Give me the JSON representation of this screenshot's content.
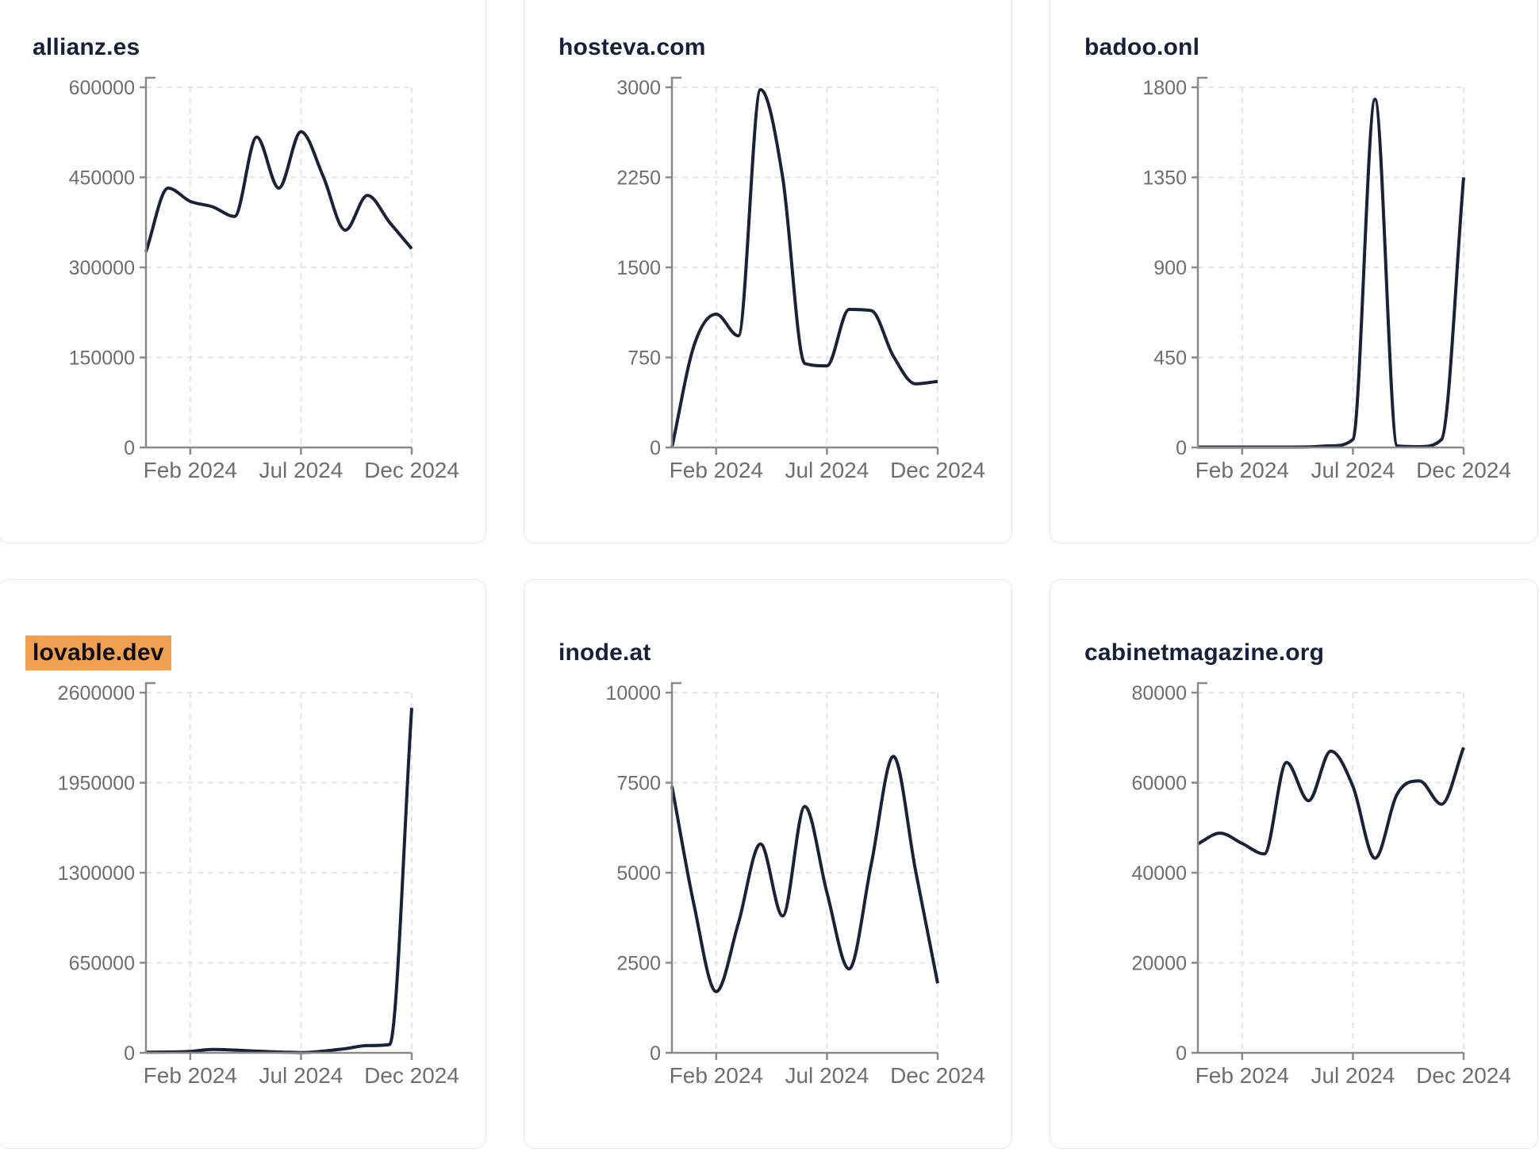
{
  "page": {
    "background": "#ffffff"
  },
  "colors": {
    "line": "#1a2139",
    "title": "#16203a",
    "tick_label": "#6e6e6e",
    "axis": "#8a8a8a",
    "grid": "#e4e5e9",
    "card_border": "#e5e8f1",
    "highlight": "#f0a04f",
    "highlight_text": "#0c0c12"
  },
  "chart_data": [
    {
      "type": "line",
      "title": "allianz.es",
      "highlighted": false,
      "x": [
        "2023-12",
        "2024-01",
        "2024-02",
        "2024-03",
        "2024-04",
        "2024-05",
        "2024-06",
        "2024-07",
        "2024-08",
        "2024-09",
        "2024-10",
        "2024-11",
        "2024-12"
      ],
      "values": [
        326000,
        432000,
        410000,
        401000,
        385000,
        517000,
        432000,
        526000,
        452000,
        362000,
        420000,
        375000,
        331000
      ],
      "ylim": [
        0,
        600000
      ],
      "y_ticks": [
        0,
        150000,
        300000,
        450000,
        600000
      ],
      "x_tick_labels": [
        "Feb 2024",
        "Jul 2024",
        "Dec 2024"
      ],
      "x_tick_index": [
        2,
        7,
        12
      ],
      "grid": "dashed",
      "legend": "none"
    },
    {
      "type": "line",
      "title": "hosteva.com",
      "highlighted": false,
      "x": [
        "2023-12",
        "2024-01",
        "2024-02",
        "2024-03",
        "2024-04",
        "2024-05",
        "2024-06",
        "2024-07",
        "2024-08",
        "2024-09",
        "2024-10",
        "2024-11",
        "2024-12"
      ],
      "values": [
        0,
        850,
        1110,
        930,
        2980,
        2250,
        700,
        680,
        1150,
        1140,
        760,
        530,
        550
      ],
      "ylim": [
        0,
        3000
      ],
      "y_ticks": [
        0,
        750,
        1500,
        2250,
        3000
      ],
      "x_tick_labels": [
        "Feb 2024",
        "Jul 2024",
        "Dec 2024"
      ],
      "x_tick_index": [
        2,
        7,
        12
      ],
      "grid": "dashed",
      "legend": "none"
    },
    {
      "type": "line",
      "title": "badoo.onl",
      "highlighted": false,
      "x": [
        "2023-12",
        "2024-01",
        "2024-02",
        "2024-03",
        "2024-04",
        "2024-05",
        "2024-06",
        "2024-07",
        "2024-08",
        "2024-09",
        "2024-10",
        "2024-11",
        "2024-12"
      ],
      "values": [
        2,
        2,
        2,
        2,
        2,
        3,
        8,
        40,
        1740,
        8,
        4,
        40,
        1350
      ],
      "ylim": [
        0,
        1800
      ],
      "y_ticks": [
        0,
        450,
        900,
        1350,
        1800
      ],
      "x_tick_labels": [
        "Feb 2024",
        "Jul 2024",
        "Dec 2024"
      ],
      "x_tick_index": [
        2,
        7,
        12
      ],
      "grid": "dashed",
      "legend": "none"
    },
    {
      "type": "line",
      "title": "lovable.dev",
      "highlighted": true,
      "x": [
        "2023-12",
        "2024-01",
        "2024-02",
        "2024-03",
        "2024-04",
        "2024-05",
        "2024-06",
        "2024-07",
        "2024-08",
        "2024-09",
        "2024-10",
        "2024-11",
        "2024-12"
      ],
      "values": [
        4000,
        6000,
        10000,
        24000,
        20000,
        12000,
        6000,
        2000,
        12000,
        30000,
        52000,
        60000,
        2490000
      ],
      "ylim": [
        0,
        2600000
      ],
      "y_ticks": [
        0,
        650000,
        1300000,
        1950000,
        2600000
      ],
      "x_tick_labels": [
        "Feb 2024",
        "Jul 2024",
        "Dec 2024"
      ],
      "x_tick_index": [
        2,
        7,
        12
      ],
      "grid": "dashed",
      "legend": "none"
    },
    {
      "type": "line",
      "title": "inode.at",
      "highlighted": false,
      "x": [
        "2023-12",
        "2024-01",
        "2024-02",
        "2024-03",
        "2024-04",
        "2024-05",
        "2024-06",
        "2024-07",
        "2024-08",
        "2024-09",
        "2024-10",
        "2024-11",
        "2024-12"
      ],
      "values": [
        7400,
        4100,
        1700,
        3600,
        5800,
        3800,
        6840,
        4450,
        2330,
        5240,
        8230,
        5060,
        1930
      ],
      "ylim": [
        0,
        10000
      ],
      "y_ticks": [
        0,
        2500,
        5000,
        7500,
        10000
      ],
      "x_tick_labels": [
        "Feb 2024",
        "Jul 2024",
        "Dec 2024"
      ],
      "x_tick_index": [
        2,
        7,
        12
      ],
      "grid": "dashed",
      "legend": "none"
    },
    {
      "type": "line",
      "title": "cabinetmagazine.org",
      "highlighted": false,
      "x": [
        "2023-12",
        "2024-01",
        "2024-02",
        "2024-03",
        "2024-04",
        "2024-05",
        "2024-06",
        "2024-07",
        "2024-08",
        "2024-09",
        "2024-10",
        "2024-11",
        "2024-12"
      ],
      "values": [
        46400,
        48800,
        46500,
        44200,
        64500,
        56000,
        67000,
        59200,
        43200,
        57500,
        60400,
        55200,
        67800
      ],
      "ylim": [
        0,
        80000
      ],
      "y_ticks": [
        0,
        20000,
        40000,
        60000,
        80000
      ],
      "x_tick_labels": [
        "Feb 2024",
        "Jul 2024",
        "Dec 2024"
      ],
      "x_tick_index": [
        2,
        7,
        12
      ],
      "grid": "dashed",
      "legend": "none"
    }
  ]
}
